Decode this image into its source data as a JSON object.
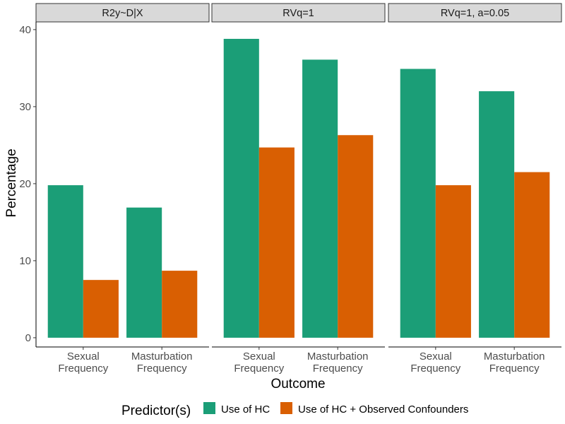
{
  "chart_data": {
    "type": "bar",
    "facets": [
      "R2y~D|X",
      "RVq=1",
      "RVq=1, a=0.05"
    ],
    "categories": [
      [
        "Sexual",
        "Frequency"
      ],
      [
        "Masturbation",
        "Frequency"
      ]
    ],
    "series": [
      {
        "name": "Use of HC",
        "color": "#1b9e77",
        "values": [
          [
            19.8,
            16.9
          ],
          [
            38.8,
            36.1
          ],
          [
            34.9,
            32.0
          ]
        ]
      },
      {
        "name": "Use of HC + Observed Confounders",
        "color": "#d95f02",
        "values": [
          [
            7.5,
            8.7
          ],
          [
            24.7,
            26.3
          ],
          [
            19.8,
            21.5
          ]
        ]
      }
    ],
    "ylim": [
      -1.2,
      41
    ],
    "yticks": [
      "0",
      "10",
      "20",
      "30",
      "40"
    ],
    "xlabel": "Outcome",
    "ylabel": "Percentage",
    "legend_title": "Predictor(s)",
    "legend_position": "bottom",
    "grid": false
  }
}
